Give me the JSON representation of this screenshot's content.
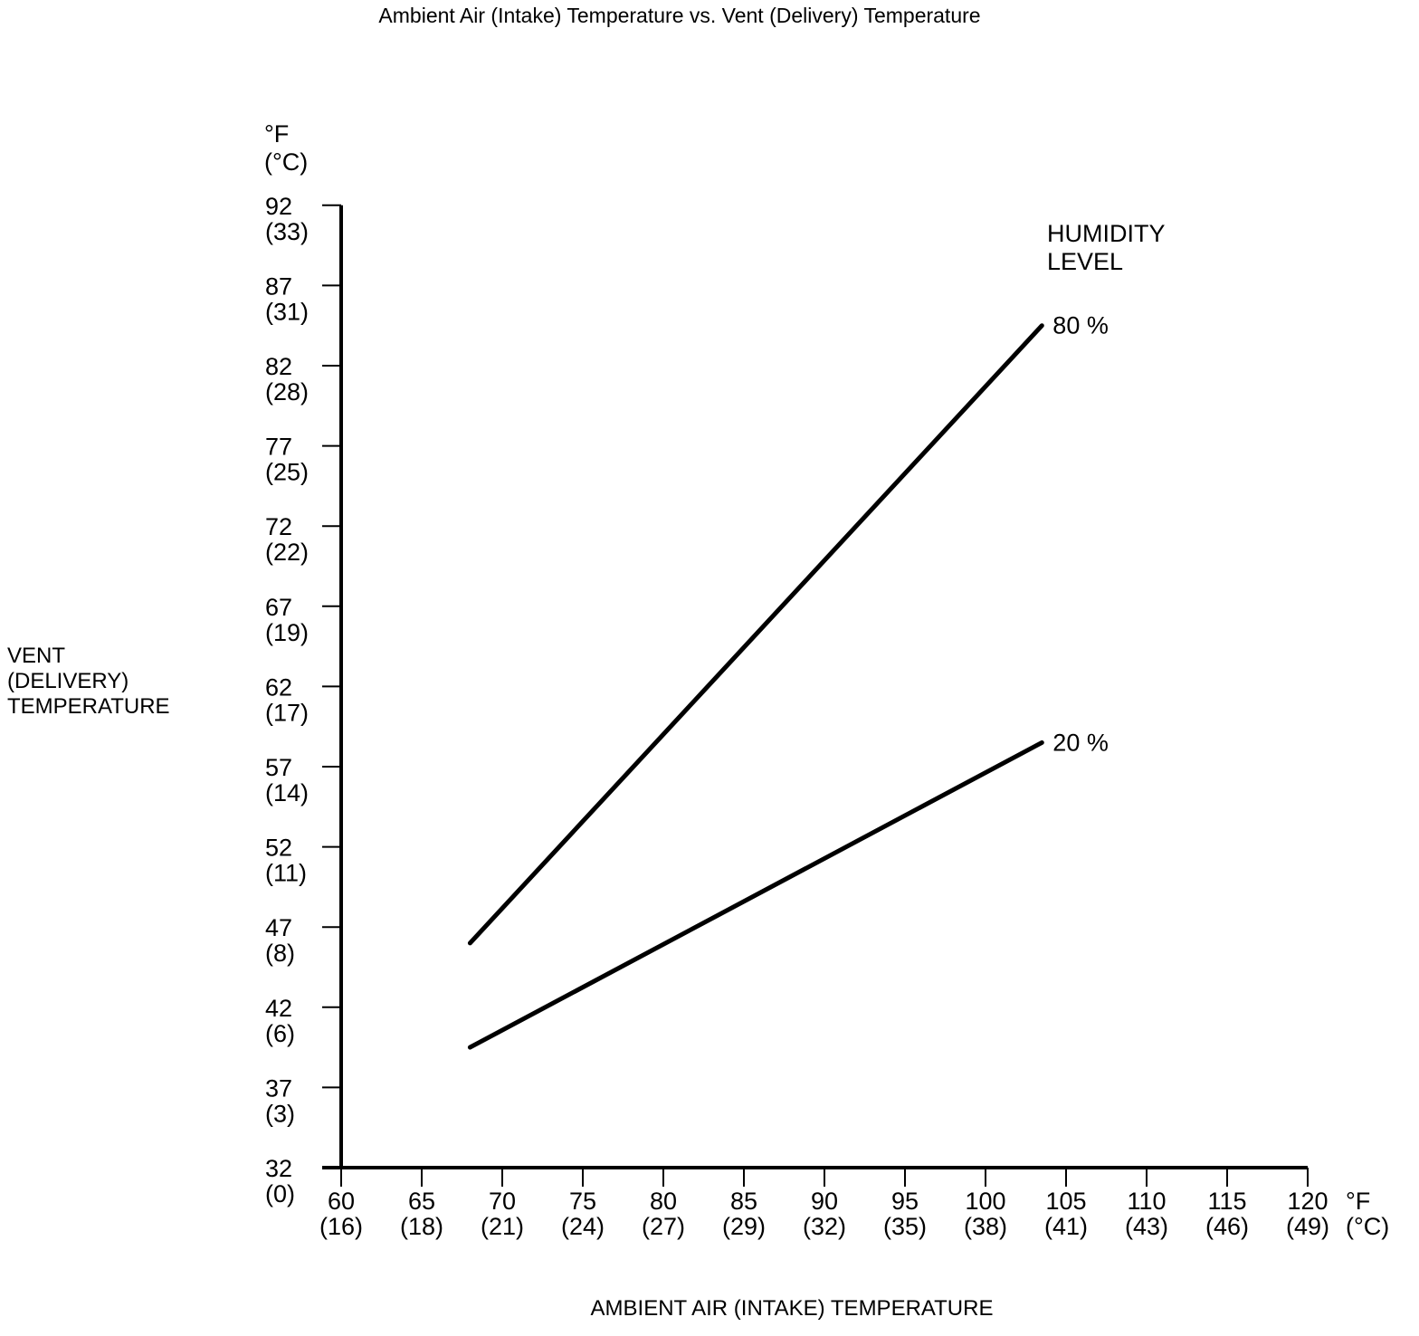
{
  "chart_data": {
    "type": "line",
    "title": "Ambient Air (Intake) Temperature vs. Vent (Delivery) Temperature",
    "xlabel": "AMBIENT AIR (INTAKE) TEMPERATURE",
    "ylabel_lines": [
      "VENT",
      "(DELIVERY)",
      "TEMPERATURE"
    ],
    "unit_label_lines": [
      "°F",
      "(°C)"
    ],
    "legend_title_lines": [
      "HUMIDITY",
      "LEVEL"
    ],
    "x_axis": {
      "min": 60,
      "max": 120,
      "ticks": [
        {
          "f": 60,
          "c": "(16)"
        },
        {
          "f": 65,
          "c": "(18)"
        },
        {
          "f": 70,
          "c": "(21)"
        },
        {
          "f": 75,
          "c": "(24)"
        },
        {
          "f": 80,
          "c": "(27)"
        },
        {
          "f": 85,
          "c": "(29)"
        },
        {
          "f": 90,
          "c": "(32)"
        },
        {
          "f": 95,
          "c": "(35)"
        },
        {
          "f": 100,
          "c": "(38)"
        },
        {
          "f": 105,
          "c": "(41)"
        },
        {
          "f": 110,
          "c": "(43)"
        },
        {
          "f": 115,
          "c": "(46)"
        },
        {
          "f": 120,
          "c": "(49)"
        }
      ]
    },
    "y_axis": {
      "min": 32,
      "max": 92,
      "ticks": [
        {
          "f": 92,
          "c": "(33)"
        },
        {
          "f": 87,
          "c": "(31)"
        },
        {
          "f": 82,
          "c": "(28)"
        },
        {
          "f": 77,
          "c": "(25)"
        },
        {
          "f": 72,
          "c": "(22)"
        },
        {
          "f": 67,
          "c": "(19)"
        },
        {
          "f": 62,
          "c": "(17)"
        },
        {
          "f": 57,
          "c": "(14)"
        },
        {
          "f": 52,
          "c": "(11)"
        },
        {
          "f": 47,
          "c": "(8)"
        },
        {
          "f": 42,
          "c": "(6)"
        },
        {
          "f": 37,
          "c": "(3)"
        },
        {
          "f": 32,
          "c": "(0)"
        }
      ]
    },
    "series": [
      {
        "name": "80 %",
        "points": [
          [
            68,
            46
          ],
          [
            103.5,
            84.5
          ]
        ]
      },
      {
        "name": "20 %",
        "points": [
          [
            68,
            39.5
          ],
          [
            103.5,
            58.5
          ]
        ]
      }
    ],
    "line_color": "#000000",
    "background": "#ffffff",
    "grid": false,
    "legend_position": "upper-right"
  }
}
